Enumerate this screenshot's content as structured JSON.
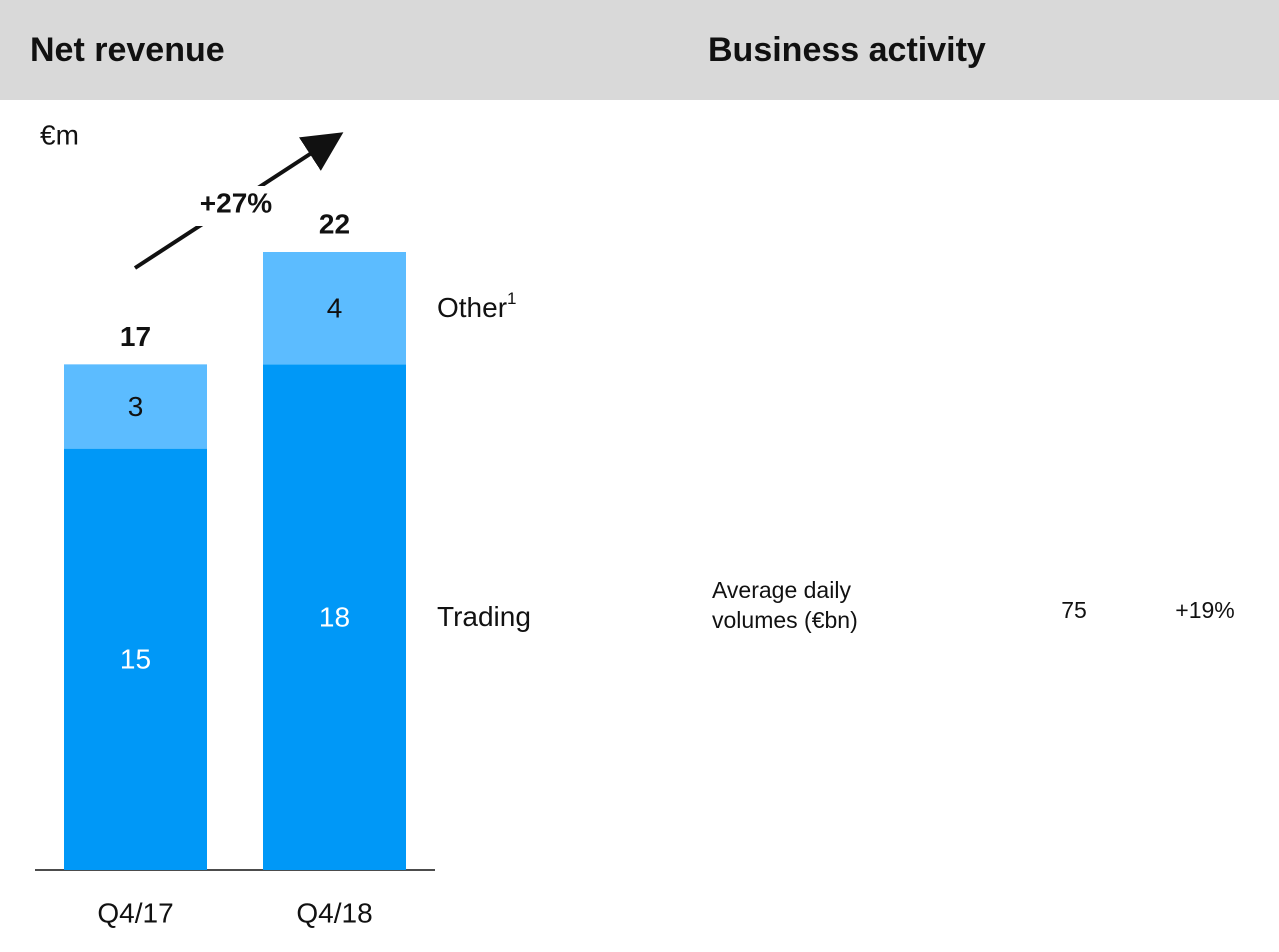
{
  "chart_data": {
    "type": "stacked_bar",
    "title": "Net revenue",
    "unit_label": "€m",
    "categories": [
      "Q4/17",
      "Q4/18"
    ],
    "series": [
      {
        "name": "Trading",
        "color": "#0098f7",
        "values": [
          15,
          18
        ]
      },
      {
        "name": "Other",
        "footnote_marker": "1",
        "color": "#5cbcff",
        "values": [
          3,
          4
        ]
      }
    ],
    "totals": [
      17,
      22
    ],
    "annotation": "+27%",
    "ylim": [
      0,
      22
    ]
  },
  "business_activity": {
    "title": "Business activity",
    "rows": [
      {
        "label": "Average daily volumes (€bn)",
        "value": 75,
        "change": "+19%"
      }
    ]
  }
}
